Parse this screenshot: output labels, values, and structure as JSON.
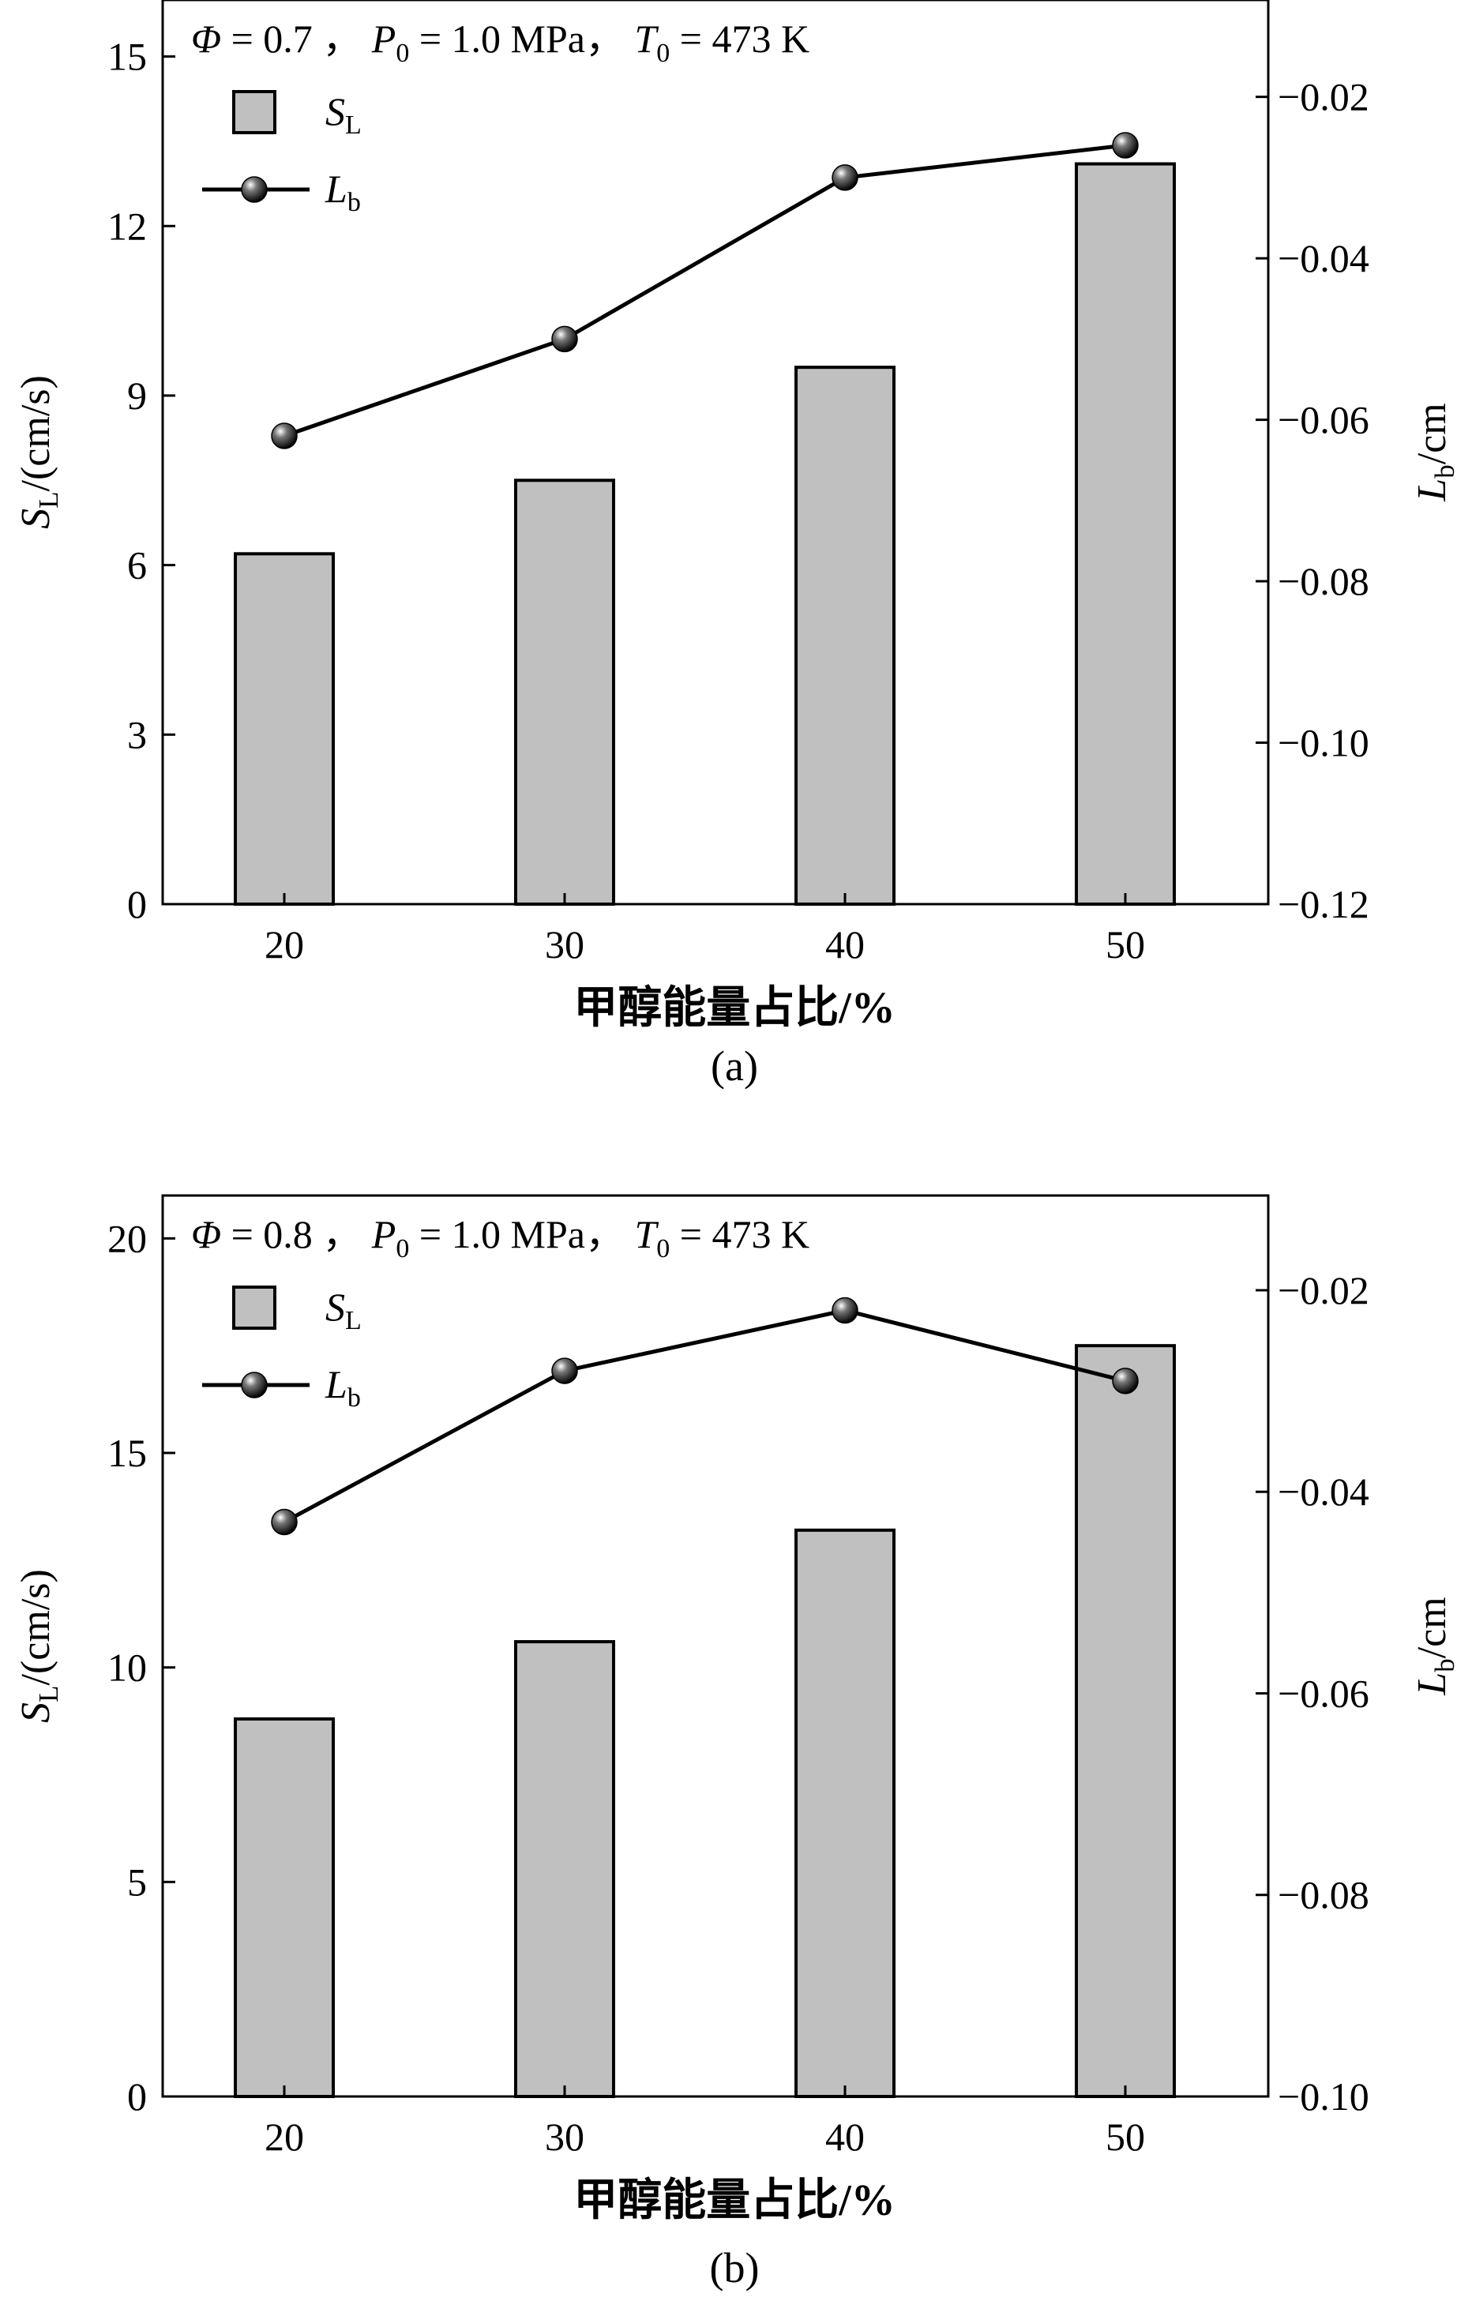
{
  "chart_data": [
    {
      "type": "bar+line",
      "panel_label": "(a)",
      "condition": {
        "phi": "Φ = 0.7",
        "p0_sym": "P",
        "p0_sub": "0",
        "p0_val": " = 1.0 MPa，",
        "t0_sym": "T",
        "t0_sub": "0",
        "t0_val": " = 473 K"
      },
      "categories": [
        "20",
        "30",
        "40",
        "50"
      ],
      "xlabel": "甲醇能量占比/%",
      "ylabel_left": {
        "sym": "S",
        "sub": "L",
        "rest": "/(cm/s)"
      },
      "ylabel_right": {
        "sym": "L",
        "sub": "b",
        "rest": "/cm"
      },
      "ylim_left": [
        0,
        16
      ],
      "yticks_left": [
        "0",
        "3",
        "6",
        "9",
        "12",
        "15"
      ],
      "ylim_right": [
        -0.12,
        -0.008
      ],
      "yticks_right": [
        "−0.12",
        "−0.10",
        "−0.08",
        "−0.06",
        "−0.04",
        "−0.02"
      ],
      "legend": [
        {
          "sym": "S",
          "sub": "L"
        },
        {
          "sym": "L",
          "sub": "b"
        }
      ],
      "series": [
        {
          "axis": "left",
          "values": [
            6.2,
            7.5,
            9.5,
            13.1
          ]
        },
        {
          "axis": "right",
          "values": [
            -0.062,
            -0.05,
            -0.03,
            -0.026
          ]
        }
      ]
    },
    {
      "type": "bar+line",
      "panel_label": "(b)",
      "condition": {
        "phi": "Φ = 0.8",
        "p0_sym": "P",
        "p0_sub": "0",
        "p0_val": " = 1.0 MPa，",
        "t0_sym": "T",
        "t0_sub": "0",
        "t0_val": " = 473 K"
      },
      "categories": [
        "20",
        "30",
        "40",
        "50"
      ],
      "xlabel": "甲醇能量占比/%",
      "ylabel_left": {
        "sym": "S",
        "sub": "L",
        "rest": "/(cm/s)"
      },
      "ylabel_right": {
        "sym": "L",
        "sub": "b",
        "rest": "/cm"
      },
      "ylim_left": [
        0,
        21
      ],
      "yticks_left": [
        "0",
        "5",
        "10",
        "15",
        "20"
      ],
      "ylim_right": [
        -0.1,
        -0.0106
      ],
      "yticks_right": [
        "−0.10",
        "−0.08",
        "−0.06",
        "−0.04",
        "−0.02"
      ],
      "legend": [
        {
          "sym": "S",
          "sub": "L"
        },
        {
          "sym": "L",
          "sub": "b"
        }
      ],
      "series": [
        {
          "axis": "left",
          "values": [
            8.8,
            10.6,
            13.2,
            17.5
          ]
        },
        {
          "axis": "right",
          "values": [
            -0.043,
            -0.028,
            -0.022,
            -0.029
          ]
        }
      ]
    }
  ]
}
